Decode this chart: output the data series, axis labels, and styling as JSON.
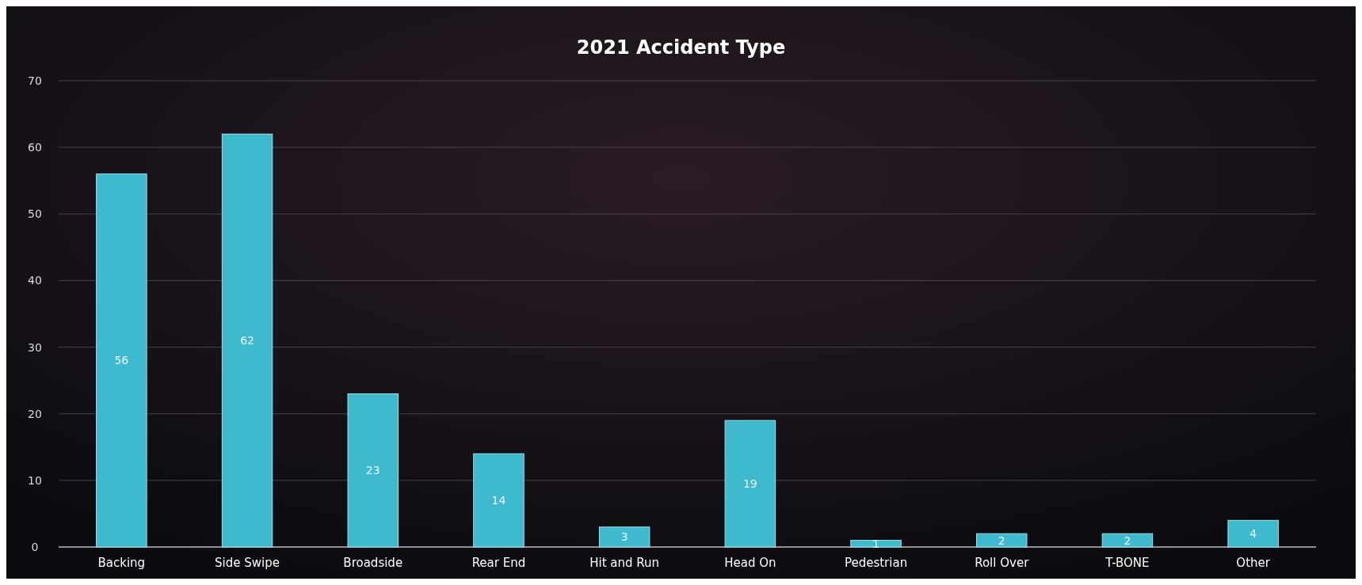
{
  "chart_data": {
    "type": "bar",
    "title": "2021 Accident Type",
    "categories": [
      "Backing",
      "Side Swipe",
      "Broadside",
      "Rear End",
      "Hit and Run",
      "Head On",
      "Pedestrian",
      "Roll Over",
      "T-BONE",
      "Other"
    ],
    "values": [
      56,
      62,
      23,
      14,
      3,
      19,
      1,
      2,
      2,
      4
    ],
    "color": "#3fb9cd",
    "ylim": [
      0,
      70
    ],
    "yticks": [
      0,
      10,
      20,
      30,
      40,
      50,
      60,
      70
    ],
    "grid": "y",
    "data_labels": true
  }
}
